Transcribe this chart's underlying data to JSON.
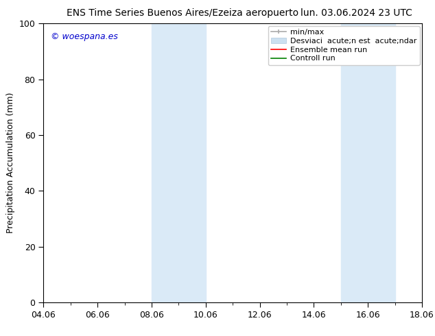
{
  "title_left": "ENS Time Series Buenos Aires/Ezeiza aeropuerto",
  "title_right": "lun. 03.06.2024 23 UTC",
  "ylabel": "Precipitation Accumulation (mm)",
  "ylim": [
    0,
    100
  ],
  "xtick_labels": [
    "04.06",
    "06.06",
    "08.06",
    "10.06",
    "12.06",
    "14.06",
    "16.06",
    "18.06"
  ],
  "xtick_positions": [
    0,
    2,
    4,
    6,
    8,
    10,
    12,
    14
  ],
  "ytick_labels": [
    "0",
    "20",
    "40",
    "60",
    "80",
    "100"
  ],
  "ytick_positions": [
    0,
    20,
    40,
    60,
    80,
    100
  ],
  "shaded_regions": [
    {
      "x_start": 4.0,
      "x_end": 6.0,
      "color": "#daeaf7"
    },
    {
      "x_start": 11.0,
      "x_end": 13.0,
      "color": "#daeaf7"
    }
  ],
  "watermark_text": "© woespana.es",
  "watermark_color": "#0000cc",
  "legend_label_minmax": "min/max",
  "legend_label_std": "Desviaci  acute;n est  acute;ndar",
  "legend_label_ensemble": "Ensemble mean run",
  "legend_label_control": "Controll run",
  "color_minmax": "#aaaaaa",
  "color_std": "#cce0f0",
  "color_ensemble": "#ff0000",
  "color_control": "#008000",
  "background_color": "#ffffff",
  "title_fontsize": 10,
  "axis_label_fontsize": 9,
  "tick_fontsize": 9,
  "legend_fontsize": 8,
  "watermark_fontsize": 9
}
